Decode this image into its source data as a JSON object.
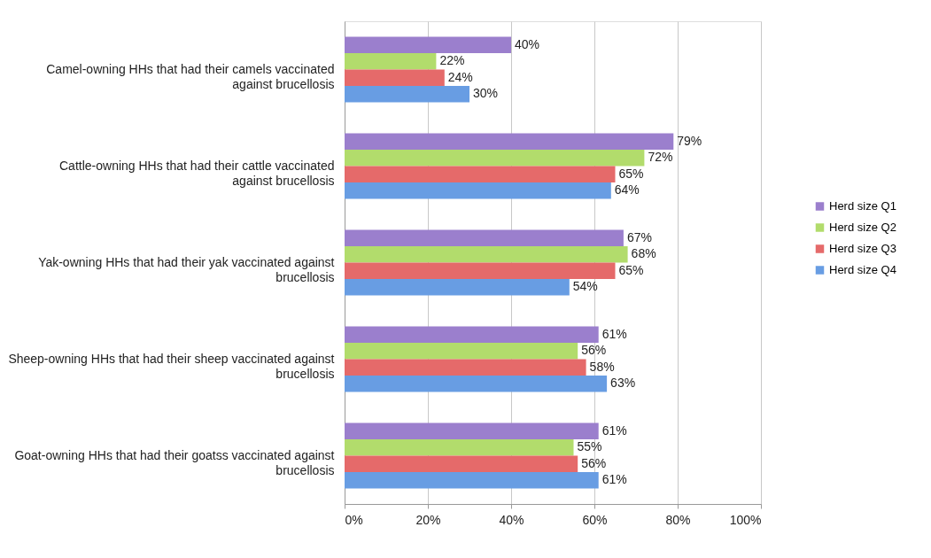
{
  "chart_data": {
    "type": "bar",
    "orientation": "horizontal",
    "categories": [
      "Camel-owning HHs that had their camels vaccinated against brucellosis",
      "Cattle-owning HHs that had their cattle vaccinated against brucellosis",
      "Yak-owning HHs that had their yak vaccinated against brucellosis",
      "Sheep-owning HHs that had their sheep vaccinated against brucellosis",
      "Goat-owning HHs that had their goatss vaccinated against brucellosis"
    ],
    "series": [
      {
        "name": "Herd size Q1",
        "color": "#9b7fcd",
        "values": [
          40,
          79,
          67,
          61,
          61
        ],
        "value_labels": [
          "40%",
          "79%",
          "67%",
          "61%",
          "61%"
        ]
      },
      {
        "name": "Herd size Q2",
        "color": "#b2dc6c",
        "values": [
          22,
          72,
          68,
          56,
          55
        ],
        "value_labels": [
          "22%",
          "72%",
          "68%",
          "56%",
          "55%"
        ]
      },
      {
        "name": "Herd size Q3",
        "color": "#e56a6a",
        "values": [
          24,
          65,
          65,
          58,
          56
        ],
        "value_labels": [
          "24%",
          "65%",
          "65%",
          "58%",
          "56%"
        ]
      },
      {
        "name": "Herd size Q4",
        "color": "#689de3",
        "values": [
          30,
          64,
          54,
          63,
          61
        ],
        "value_labels": [
          "30%",
          "64%",
          "54%",
          "63%",
          "61%"
        ]
      }
    ],
    "xlim": [
      0,
      100
    ],
    "xticks": [
      {
        "value": 0,
        "label": "0%"
      },
      {
        "value": 20,
        "label": "20%"
      },
      {
        "value": 40,
        "label": "40%"
      },
      {
        "value": 60,
        "label": "60%"
      },
      {
        "value": 80,
        "label": "80%"
      },
      {
        "value": 100,
        "label": "100%"
      }
    ],
    "grid": "x",
    "legend": "right"
  }
}
